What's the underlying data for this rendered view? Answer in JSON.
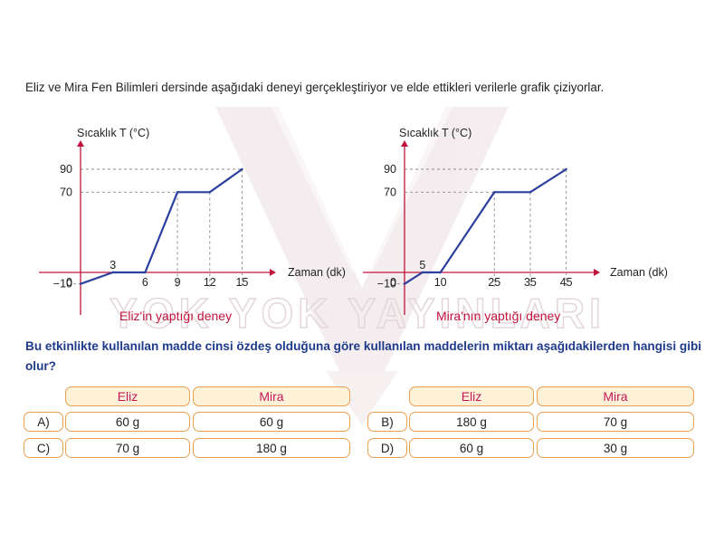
{
  "intro_text": "Eliz ve Mira Fen Bilimleri dersinde aşağıdaki deneyi gerçekleştiriyor ve elde ettikleri verilerle grafik çiziyorlar.",
  "watermark_text": "YOK YOK YAYINLARI",
  "colors": {
    "line": "#2b3f9e",
    "axis": "#c0143c",
    "caption": "#c0143c",
    "question": "#1e3a8a",
    "pill_border": "#e8a050",
    "pill_head_bg": "#fdf2d8",
    "head_text": "#c2185b"
  },
  "chart_data": [
    {
      "type": "line",
      "ylabel": "Sıcaklık T (°C)",
      "xlabel": "Zaman (dk)",
      "caption": "Eliz'in yaptığı deney",
      "origin_label": "0",
      "x": [
        0,
        3,
        6,
        9,
        12,
        15
      ],
      "y": [
        -10,
        0,
        0,
        70,
        70,
        90
      ],
      "x_ticks": [
        "6",
        "9",
        "12",
        "15"
      ],
      "x_above_label": "3",
      "y_ticks": [
        "90",
        "70",
        "−10"
      ],
      "xlim": [
        0,
        15
      ],
      "ylim": [
        -10,
        90
      ]
    },
    {
      "type": "line",
      "ylabel": "Sıcaklık T (°C)",
      "xlabel": "Zaman (dk)",
      "caption": "Mira'nın yaptığı deney",
      "origin_label": "0",
      "x": [
        0,
        5,
        10,
        25,
        35,
        45
      ],
      "y": [
        -10,
        0,
        0,
        70,
        70,
        90
      ],
      "x_ticks": [
        "10",
        "25",
        "35",
        "45"
      ],
      "x_above_label": "5",
      "y_ticks": [
        "90",
        "70",
        "−10"
      ],
      "xlim": [
        0,
        45
      ],
      "ylim": [
        -10,
        90
      ]
    }
  ],
  "question": "Bu etkinlikte kullanılan madde cinsi özdeş olduğuna göre kullanılan maddelerin miktarı aşağıdakilerden hangisi gibi olur?",
  "table_headers": {
    "eliz": "Eliz",
    "mira": "Mira"
  },
  "options": [
    {
      "label": "A)",
      "eliz": "60 g",
      "mira": "60 g"
    },
    {
      "label": "B)",
      "eliz": "180 g",
      "mira": "70 g"
    },
    {
      "label": "C)",
      "eliz": "70 g",
      "mira": "180 g"
    },
    {
      "label": "D)",
      "eliz": "60 g",
      "mira": "30 g"
    }
  ]
}
